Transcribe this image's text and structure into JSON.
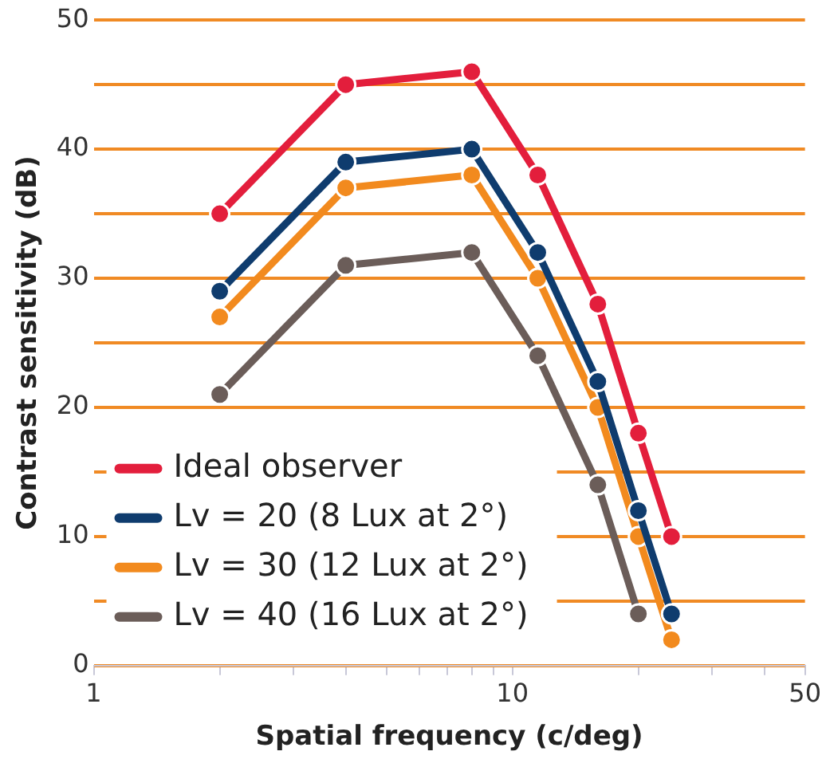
{
  "chart_data": {
    "type": "line",
    "xlabel": "Spatial frequency (c/deg)",
    "ylabel": "Contrast sensitivity (dB)",
    "x": [
      2,
      4,
      8,
      11.5,
      16,
      20,
      24
    ],
    "series": [
      {
        "name": "Ideal observer",
        "color": "#e31e3c",
        "values": [
          35,
          45,
          46,
          38,
          28,
          18,
          10
        ]
      },
      {
        "name": "Lv = 20 (8 Lux at 2°)",
        "color": "#0f3c6e",
        "values": [
          29,
          39,
          40,
          32,
          22,
          12,
          4
        ]
      },
      {
        "name": "Lv = 30 (12 Lux at 2°)",
        "color": "#f28a1e",
        "values": [
          27,
          37,
          38,
          30,
          20,
          10,
          2
        ]
      },
      {
        "name": "Lv = 40 (16 Lux at 2°)",
        "color": "#6b5d59",
        "values": [
          21,
          31,
          32,
          24,
          14,
          4,
          null
        ]
      }
    ],
    "log": "x",
    "xlim": [
      1,
      50
    ],
    "xticks": [
      1,
      {
        "value": 2,
        "label": null
      },
      {
        "value": 3,
        "label": null
      },
      {
        "value": 4,
        "label": null
      },
      {
        "value": 5,
        "label": null
      },
      {
        "value": 6,
        "label": null
      },
      {
        "value": 7,
        "label": null
      },
      {
        "value": 8,
        "label": null
      },
      {
        "value": 9,
        "label": null
      },
      10,
      {
        "value": 20,
        "label": null
      },
      {
        "value": 30,
        "label": null
      },
      {
        "value": 40,
        "label": null
      },
      50
    ],
    "ylim": [
      0,
      50
    ],
    "yticks": [
      0,
      {
        "value": 5,
        "label": null
      },
      10,
      {
        "value": 15,
        "label": null
      },
      20,
      {
        "value": 25,
        "label": null
      },
      30,
      {
        "value": 35,
        "label": null
      },
      40,
      {
        "value": 45,
        "label": null
      },
      50
    ],
    "grid": "y",
    "legend": "bottom left",
    "marker": "circle",
    "line_style": "solid"
  }
}
